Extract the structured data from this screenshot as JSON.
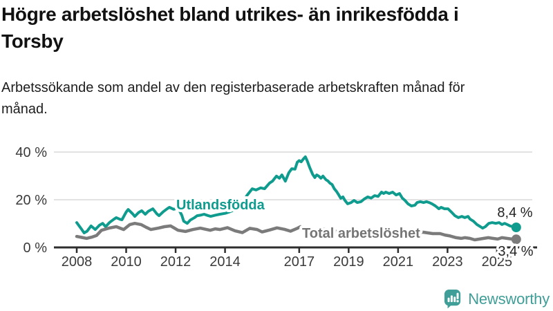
{
  "colors": {
    "teal": "#0f9b8e",
    "gray": "#7b7b7b",
    "gray_label": "#757575",
    "logo_teal": "#3f9e97",
    "axis": "#2d2d2d",
    "grid": "#d9d9d9",
    "tick_text": "#3a3a3a"
  },
  "footer": {
    "brand": "Newsworthy",
    "logo_icon": "bar-chart-speech-bubble-icon"
  },
  "chart_data": {
    "type": "line",
    "title": "Högre arbetslöshet bland utrikes- än inrikesfödda i Torsby",
    "subtitle": "Arbetssökande som andel av den registerbaserade arbetskraften månad för månad.",
    "xlabel": "",
    "ylabel": "",
    "xlim": [
      2008,
      2025.9
    ],
    "ylim": [
      0,
      40
    ],
    "grid": "horizontal",
    "legend_position": "inline-labels",
    "x_ticks": [
      2008,
      2010,
      2012,
      2014,
      2017,
      2019,
      2021,
      2023,
      2025
    ],
    "y_ticks": [
      {
        "value": 0,
        "label": "0 %"
      },
      {
        "value": 20,
        "label": "20 %"
      },
      {
        "value": 40,
        "label": "40 %"
      }
    ],
    "series": [
      {
        "id": "utlandsfodda",
        "name": "Utlandsfödda",
        "color": "#0f9b8e",
        "end_label": "8,4 %",
        "end_value": 8.4,
        "points": [
          [
            2008.0,
            10.4
          ],
          [
            2008.17,
            8.0
          ],
          [
            2008.3,
            6.1
          ],
          [
            2008.42,
            6.8
          ],
          [
            2008.58,
            9.0
          ],
          [
            2008.75,
            7.5
          ],
          [
            2008.92,
            9.3
          ],
          [
            2009.05,
            10.1
          ],
          [
            2009.17,
            8.7
          ],
          [
            2009.33,
            10.5
          ],
          [
            2009.5,
            11.8
          ],
          [
            2009.6,
            12.5
          ],
          [
            2009.75,
            11.8
          ],
          [
            2009.83,
            11.6
          ],
          [
            2010.0,
            14.8
          ],
          [
            2010.08,
            15.9
          ],
          [
            2010.25,
            14.2
          ],
          [
            2010.35,
            13.0
          ],
          [
            2010.5,
            14.6
          ],
          [
            2010.63,
            15.4
          ],
          [
            2010.77,
            13.9
          ],
          [
            2010.9,
            15.2
          ],
          [
            2011.08,
            16.2
          ],
          [
            2011.25,
            14.0
          ],
          [
            2011.33,
            13.3
          ],
          [
            2011.5,
            15.0
          ],
          [
            2011.67,
            16.3
          ],
          [
            2011.75,
            16.8
          ],
          [
            2011.92,
            16.0
          ],
          [
            2012.1,
            16.5
          ],
          [
            2012.25,
            13.5
          ],
          [
            2012.33,
            11.0
          ],
          [
            2012.47,
            10.1
          ],
          [
            2012.6,
            11.5
          ],
          [
            2012.75,
            12.4
          ],
          [
            2012.87,
            13.3
          ],
          [
            2013.0,
            13.5
          ],
          [
            2013.15,
            13.9
          ],
          [
            2013.3,
            13.4
          ],
          [
            2013.42,
            13.0
          ],
          [
            2013.6,
            13.5
          ],
          [
            2013.79,
            13.9
          ],
          [
            2014.0,
            14.3
          ],
          [
            2014.2,
            15.0
          ],
          [
            2014.4,
            15.8
          ],
          [
            2014.6,
            17.0
          ],
          [
            2014.75,
            19.0
          ],
          [
            2014.88,
            21.7
          ],
          [
            2015.1,
            24.6
          ],
          [
            2015.25,
            24.1
          ],
          [
            2015.44,
            25.0
          ],
          [
            2015.6,
            24.6
          ],
          [
            2015.8,
            27.0
          ],
          [
            2015.92,
            27.8
          ],
          [
            2016.08,
            29.9
          ],
          [
            2016.2,
            29.0
          ],
          [
            2016.3,
            30.4
          ],
          [
            2016.44,
            27.8
          ],
          [
            2016.58,
            31.3
          ],
          [
            2016.7,
            33.0
          ],
          [
            2016.83,
            32.8
          ],
          [
            2016.92,
            35.7
          ],
          [
            2017.0,
            36.4
          ],
          [
            2017.08,
            35.9
          ],
          [
            2017.17,
            37.1
          ],
          [
            2017.25,
            38.0
          ],
          [
            2017.33,
            36.2
          ],
          [
            2017.42,
            33.6
          ],
          [
            2017.54,
            30.7
          ],
          [
            2017.63,
            29.3
          ],
          [
            2017.71,
            30.4
          ],
          [
            2017.79,
            29.9
          ],
          [
            2017.88,
            29.0
          ],
          [
            2017.96,
            29.9
          ],
          [
            2018.08,
            28.4
          ],
          [
            2018.17,
            27.8
          ],
          [
            2018.24,
            27.0
          ],
          [
            2018.33,
            26.4
          ],
          [
            2018.42,
            24.6
          ],
          [
            2018.51,
            23.5
          ],
          [
            2018.6,
            22.0
          ],
          [
            2018.68,
            20.6
          ],
          [
            2018.77,
            21.2
          ],
          [
            2018.85,
            19.7
          ],
          [
            2018.96,
            18.3
          ],
          [
            2019.1,
            18.8
          ],
          [
            2019.22,
            19.7
          ],
          [
            2019.35,
            18.8
          ],
          [
            2019.5,
            19.2
          ],
          [
            2019.63,
            20.3
          ],
          [
            2019.77,
            21.2
          ],
          [
            2019.91,
            20.7
          ],
          [
            2020.05,
            21.7
          ],
          [
            2020.19,
            21.4
          ],
          [
            2020.33,
            23.2
          ],
          [
            2020.42,
            22.6
          ],
          [
            2020.5,
            23.2
          ],
          [
            2020.64,
            22.6
          ],
          [
            2020.78,
            23.2
          ],
          [
            2020.92,
            22.0
          ],
          [
            2021.06,
            22.6
          ],
          [
            2021.17,
            20.7
          ],
          [
            2021.28,
            19.7
          ],
          [
            2021.4,
            18.3
          ],
          [
            2021.54,
            17.4
          ],
          [
            2021.68,
            17.7
          ],
          [
            2021.77,
            18.8
          ],
          [
            2021.9,
            19.2
          ],
          [
            2022.03,
            18.8
          ],
          [
            2022.15,
            19.2
          ],
          [
            2022.26,
            18.8
          ],
          [
            2022.37,
            18.3
          ],
          [
            2022.51,
            17.4
          ],
          [
            2022.65,
            16.2
          ],
          [
            2022.74,
            16.8
          ],
          [
            2022.88,
            16.2
          ],
          [
            2023.02,
            16.2
          ],
          [
            2023.16,
            14.8
          ],
          [
            2023.3,
            13.3
          ],
          [
            2023.44,
            12.5
          ],
          [
            2023.58,
            13.0
          ],
          [
            2023.7,
            12.5
          ],
          [
            2023.83,
            13.0
          ],
          [
            2023.91,
            11.9
          ],
          [
            2024.05,
            11.0
          ],
          [
            2024.19,
            9.6
          ],
          [
            2024.33,
            8.7
          ],
          [
            2024.42,
            8.1
          ],
          [
            2024.53,
            8.7
          ],
          [
            2024.67,
            10.1
          ],
          [
            2024.81,
            10.4
          ],
          [
            2024.95,
            10.1
          ],
          [
            2025.09,
            10.4
          ],
          [
            2025.2,
            9.6
          ],
          [
            2025.31,
            10.1
          ],
          [
            2025.42,
            9.6
          ],
          [
            2025.53,
            9.0
          ],
          [
            2025.65,
            8.7
          ],
          [
            2025.78,
            8.4
          ]
        ]
      },
      {
        "id": "total-arbetsloshet",
        "name": "Total arbetslöshet",
        "color": "#7b7b7b",
        "end_label": "3,4 %",
        "end_value": 3.4,
        "points": [
          [
            2008.0,
            4.6
          ],
          [
            2008.2,
            4.2
          ],
          [
            2008.4,
            3.8
          ],
          [
            2008.6,
            4.3
          ],
          [
            2008.8,
            5.0
          ],
          [
            2009.0,
            7.2
          ],
          [
            2009.3,
            8.1
          ],
          [
            2009.6,
            8.7
          ],
          [
            2009.9,
            7.5
          ],
          [
            2010.15,
            9.6
          ],
          [
            2010.35,
            10.1
          ],
          [
            2010.6,
            9.6
          ],
          [
            2010.8,
            8.5
          ],
          [
            2011.0,
            7.5
          ],
          [
            2011.3,
            8.1
          ],
          [
            2011.55,
            8.7
          ],
          [
            2011.8,
            9.0
          ],
          [
            2012.1,
            7.2
          ],
          [
            2012.4,
            6.7
          ],
          [
            2012.7,
            7.5
          ],
          [
            2013.0,
            8.1
          ],
          [
            2013.4,
            7.2
          ],
          [
            2013.6,
            7.8
          ],
          [
            2013.8,
            7.5
          ],
          [
            2014.1,
            8.3
          ],
          [
            2014.4,
            7.0
          ],
          [
            2014.7,
            6.2
          ],
          [
            2015.0,
            8.0
          ],
          [
            2015.3,
            7.5
          ],
          [
            2015.5,
            6.5
          ],
          [
            2015.8,
            7.3
          ],
          [
            2016.1,
            8.2
          ],
          [
            2016.4,
            7.6
          ],
          [
            2016.65,
            6.8
          ],
          [
            2016.9,
            7.9
          ],
          [
            2017.05,
            8.7
          ],
          [
            2017.3,
            8.2
          ],
          [
            2017.6,
            7.3
          ],
          [
            2017.9,
            7.8
          ],
          [
            2018.1,
            7.6
          ],
          [
            2018.4,
            6.8
          ],
          [
            2018.7,
            6.4
          ],
          [
            2019.0,
            7.0
          ],
          [
            2019.4,
            6.3
          ],
          [
            2019.7,
            6.5
          ],
          [
            2020.0,
            7.0
          ],
          [
            2020.4,
            7.4
          ],
          [
            2020.7,
            7.1
          ],
          [
            2021.0,
            7.2
          ],
          [
            2021.4,
            6.4
          ],
          [
            2021.7,
            6.2
          ],
          [
            2022.0,
            6.4
          ],
          [
            2022.4,
            5.8
          ],
          [
            2022.7,
            5.8
          ],
          [
            2022.9,
            5.2
          ],
          [
            2023.1,
            4.8
          ],
          [
            2023.35,
            4.1
          ],
          [
            2023.55,
            3.8
          ],
          [
            2023.7,
            4.1
          ],
          [
            2023.9,
            3.8
          ],
          [
            2024.1,
            3.2
          ],
          [
            2024.3,
            3.5
          ],
          [
            2024.47,
            3.8
          ],
          [
            2024.65,
            4.1
          ],
          [
            2024.83,
            3.8
          ],
          [
            2025.03,
            3.5
          ],
          [
            2025.2,
            4.1
          ],
          [
            2025.4,
            3.8
          ],
          [
            2025.6,
            3.5
          ],
          [
            2025.78,
            3.4
          ]
        ]
      }
    ]
  }
}
